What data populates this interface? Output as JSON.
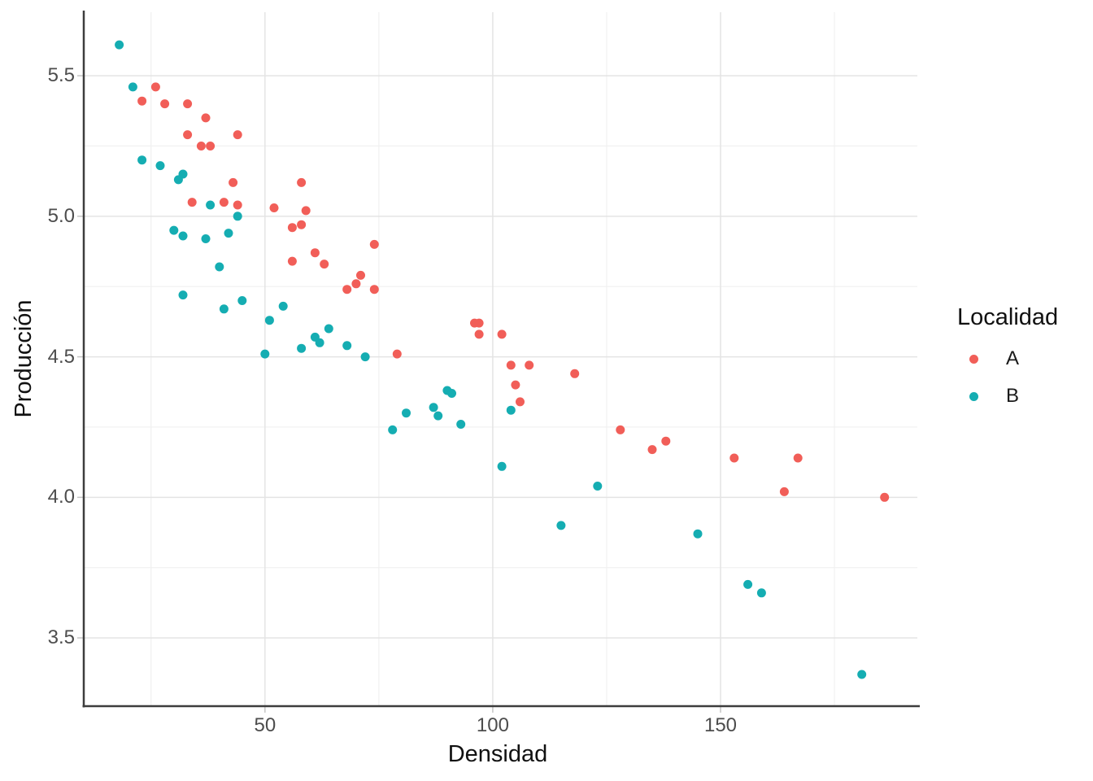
{
  "chart_data": {
    "type": "scatter",
    "title": "",
    "xlabel": "Densidad",
    "ylabel": "Producción",
    "grid": true,
    "legend": {
      "title": "Localidad",
      "position": "right"
    },
    "x_axis": {
      "min": 10.4,
      "max": 193.2,
      "major_ticks": [
        50,
        100,
        150
      ],
      "minor_ticks": [
        25,
        75,
        125,
        175
      ],
      "tick_labels": [
        "50",
        "100",
        "150"
      ]
    },
    "y_axis": {
      "min": 3.26,
      "max": 5.726,
      "major_ticks": [
        3.5,
        4.0,
        4.5,
        5.0,
        5.5
      ],
      "minor_ticks": [
        3.75,
        4.25,
        4.75,
        5.25
      ],
      "tick_labels": [
        "3.5",
        "4.0",
        "4.5",
        "5.0",
        "5.5"
      ]
    },
    "colors": {
      "series_a": "#F15E58",
      "series_b": "#15ADB2",
      "grid_major": "#e4e4e4",
      "grid_minor": "#f0f0f0",
      "axis_line": "#3d3d3d"
    },
    "series": [
      {
        "name": "A",
        "color": "#F15E58",
        "points": [
          [
            26,
            5.46
          ],
          [
            23,
            5.41
          ],
          [
            28,
            5.4
          ],
          [
            33,
            5.4
          ],
          [
            37,
            5.35
          ],
          [
            33,
            5.29
          ],
          [
            44,
            5.29
          ],
          [
            36,
            5.25
          ],
          [
            38,
            5.25
          ],
          [
            43,
            5.12
          ],
          [
            58,
            5.12
          ],
          [
            34,
            5.05
          ],
          [
            41,
            5.05
          ],
          [
            44,
            5.04
          ],
          [
            52,
            5.03
          ],
          [
            59,
            5.02
          ],
          [
            56,
            4.96
          ],
          [
            58,
            4.97
          ],
          [
            61,
            4.87
          ],
          [
            56,
            4.84
          ],
          [
            63,
            4.83
          ],
          [
            74,
            4.9
          ],
          [
            71,
            4.79
          ],
          [
            70,
            4.76
          ],
          [
            68,
            4.74
          ],
          [
            74,
            4.74
          ],
          [
            96,
            4.62
          ],
          [
            97,
            4.62
          ],
          [
            97,
            4.58
          ],
          [
            102,
            4.58
          ],
          [
            79,
            4.51
          ],
          [
            104,
            4.47
          ],
          [
            108,
            4.47
          ],
          [
            118,
            4.44
          ],
          [
            105,
            4.4
          ],
          [
            106,
            4.34
          ],
          [
            128,
            4.24
          ],
          [
            135,
            4.17
          ],
          [
            138,
            4.2
          ],
          [
            153,
            4.14
          ],
          [
            167,
            4.14
          ],
          [
            164,
            4.02
          ],
          [
            186,
            4.0
          ]
        ]
      },
      {
        "name": "B",
        "color": "#15ADB2",
        "points": [
          [
            18,
            5.61
          ],
          [
            21,
            5.46
          ],
          [
            23,
            5.2
          ],
          [
            27,
            5.18
          ],
          [
            32,
            5.15
          ],
          [
            31,
            5.13
          ],
          [
            38,
            5.04
          ],
          [
            44,
            5.0
          ],
          [
            30,
            4.95
          ],
          [
            32,
            4.93
          ],
          [
            37,
            4.92
          ],
          [
            42,
            4.94
          ],
          [
            40,
            4.82
          ],
          [
            32,
            4.72
          ],
          [
            45,
            4.7
          ],
          [
            41,
            4.67
          ],
          [
            51,
            4.63
          ],
          [
            54,
            4.68
          ],
          [
            64,
            4.6
          ],
          [
            61,
            4.57
          ],
          [
            62,
            4.55
          ],
          [
            58,
            4.53
          ],
          [
            50,
            4.51
          ],
          [
            68,
            4.54
          ],
          [
            72,
            4.5
          ],
          [
            78,
            4.24
          ],
          [
            81,
            4.3
          ],
          [
            87,
            4.32
          ],
          [
            88,
            4.29
          ],
          [
            90,
            4.38
          ],
          [
            91,
            4.37
          ],
          [
            93,
            4.26
          ],
          [
            104,
            4.31
          ],
          [
            102,
            4.11
          ],
          [
            115,
            3.9
          ],
          [
            123,
            4.04
          ],
          [
            145,
            3.87
          ],
          [
            156,
            3.69
          ],
          [
            159,
            3.66
          ],
          [
            181,
            3.37
          ]
        ]
      }
    ]
  }
}
